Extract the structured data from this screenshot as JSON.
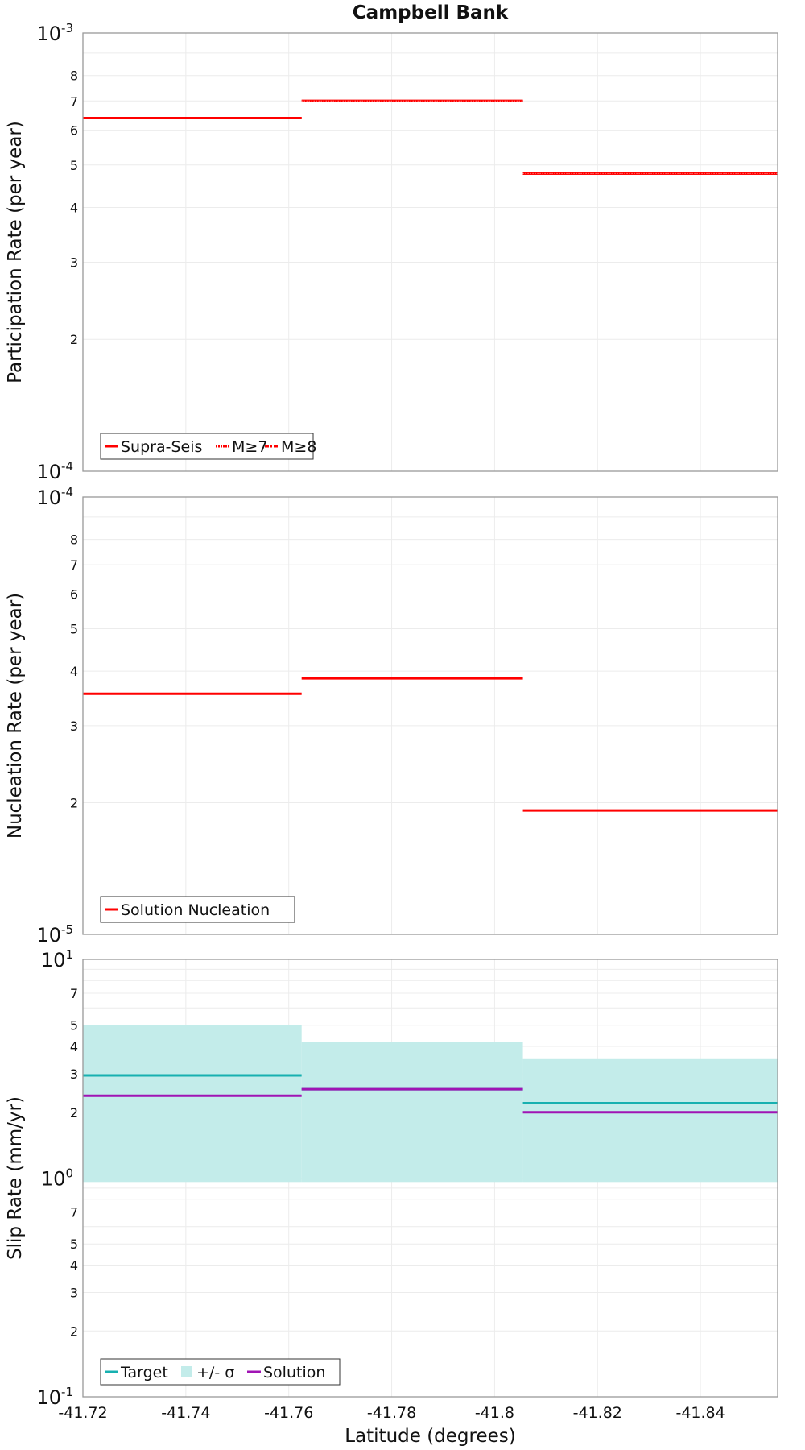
{
  "chart_data": [
    {
      "type": "line",
      "id": "participation",
      "title": "Campbell Bank",
      "xlabel": "Latitude (degrees)",
      "ylabel": "Participation Rate (per year)",
      "yscale": "log",
      "ylim": [
        0.0001,
        0.001
      ],
      "xlim": [
        -41.72,
        -41.855
      ],
      "x_ticks": [
        "-41.72",
        "-41.74",
        "-41.76",
        "-41.78",
        "-41.8",
        "-41.82",
        "-41.84"
      ],
      "y_tick_labels": [
        "8",
        "7",
        "6",
        "5",
        "4",
        "3",
        "2"
      ],
      "y_decades": [
        {
          "base": "10",
          "exp": "-3"
        },
        {
          "base": "10",
          "exp": "-4"
        }
      ],
      "segments_x": [
        [
          -41.72,
          -41.7625
        ],
        [
          -41.7625,
          -41.8055
        ],
        [
          -41.8055,
          -41.855
        ]
      ],
      "series": [
        {
          "name": "Supra-Seis",
          "style": "solid",
          "color": "#ff0000",
          "values": [
            0.00064,
            0.0007,
            0.000478
          ]
        },
        {
          "name": "M≥7",
          "style": "dotted",
          "color": "#ff0000",
          "values": [
            0.00064,
            0.0007,
            0.000478
          ]
        },
        {
          "name": "M≥8",
          "style": "dashdot",
          "color": "#ff0000",
          "values": [
            null,
            null,
            null
          ]
        }
      ],
      "legend": "bottom-left"
    },
    {
      "type": "line",
      "id": "nucleation",
      "title": "",
      "xlabel": "Latitude (degrees)",
      "ylabel": "Nucleation Rate (per year)",
      "yscale": "log",
      "ylim": [
        1e-05,
        0.0001
      ],
      "xlim": [
        -41.72,
        -41.855
      ],
      "y_tick_labels": [
        "8",
        "7",
        "6",
        "5",
        "4",
        "3",
        "2"
      ],
      "y_decades": [
        {
          "base": "10",
          "exp": "-4"
        },
        {
          "base": "10",
          "exp": "-5"
        }
      ],
      "segments_x": [
        [
          -41.72,
          -41.7625
        ],
        [
          -41.7625,
          -41.8055
        ],
        [
          -41.8055,
          -41.855
        ]
      ],
      "series": [
        {
          "name": "Solution Nucleation",
          "style": "solid",
          "color": "#ff0000",
          "values": [
            3.55e-05,
            3.85e-05,
            1.92e-05
          ]
        }
      ],
      "legend": "bottom-left"
    },
    {
      "type": "line",
      "id": "slip",
      "title": "",
      "xlabel": "Latitude (degrees)",
      "ylabel": "Slip Rate (mm/yr)",
      "yscale": "log",
      "ylim": [
        0.1,
        10
      ],
      "xlim": [
        -41.72,
        -41.855
      ],
      "y_tick_labels_upper": [
        "7",
        "5",
        "4",
        "3",
        "2"
      ],
      "y_tick_labels_lower": [
        "7",
        "5",
        "4",
        "3",
        "2"
      ],
      "y_decades": [
        {
          "base": "10",
          "exp": "1"
        },
        {
          "base": "10",
          "exp": "0"
        },
        {
          "base": "10",
          "exp": "-1"
        }
      ],
      "segments_x": [
        [
          -41.72,
          -41.7625
        ],
        [
          -41.7625,
          -41.8055
        ],
        [
          -41.8055,
          -41.855
        ]
      ],
      "band": {
        "name": "+/- σ",
        "color": "#c3ecea",
        "lower": [
          0.96,
          0.96,
          0.96
        ],
        "upper": [
          5.0,
          4.2,
          3.5
        ]
      },
      "series": [
        {
          "name": "Target",
          "style": "solid",
          "color": "#17b0b0",
          "values": [
            2.95,
            2.55,
            2.2
          ]
        },
        {
          "name": "Solution",
          "style": "solid",
          "color": "#a014b4",
          "values": [
            2.38,
            2.55,
            2.0
          ]
        }
      ],
      "legend_order": [
        "Target",
        "+/- σ",
        "Solution"
      ],
      "legend": "bottom-left"
    }
  ]
}
